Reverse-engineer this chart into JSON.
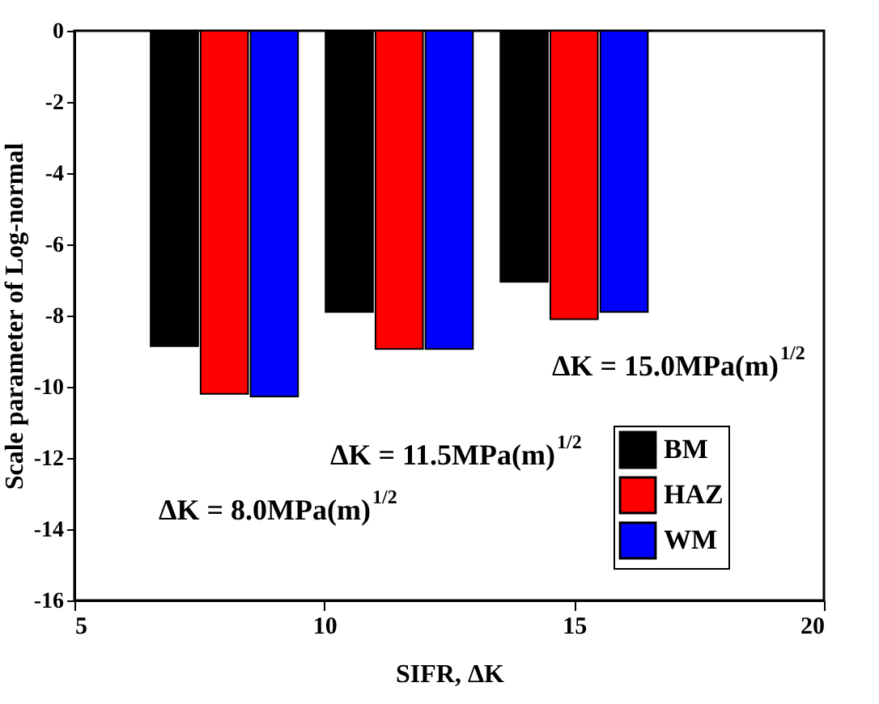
{
  "chart_data": {
    "type": "bar",
    "xlabel": "SIFR, ΔK",
    "ylabel": "Scale parameter of Log-normal",
    "series": [
      {
        "name": "BM",
        "color": "#000000",
        "x": [
          7,
          10.5,
          14
        ],
        "values": [
          -8.86,
          -7.9,
          -7.05
        ]
      },
      {
        "name": "HAZ",
        "color": "#ff0000",
        "x": [
          8,
          11.5,
          15
        ],
        "values": [
          -10.2,
          -8.94,
          -8.1
        ]
      },
      {
        "name": "WM",
        "color": "#0000ff",
        "x": [
          9,
          12.5,
          16
        ],
        "values": [
          -10.27,
          -8.94,
          -7.9
        ]
      }
    ],
    "xlim": [
      5,
      20
    ],
    "xticks": [
      5,
      10,
      15,
      20
    ],
    "ylim": [
      -16,
      0
    ],
    "yticks": [
      0,
      -2,
      -4,
      -6,
      -8,
      -10,
      -12,
      -14,
      -16
    ],
    "grid": false,
    "legend": "bottom right",
    "annotations": [
      "ΔK = 8.0MPa(m)$^{1/2}$",
      "ΔK = 11.5MPa(m)$^{1/2}$",
      "ΔK = 15.0MPa(m)$^{1/2}$"
    ]
  }
}
